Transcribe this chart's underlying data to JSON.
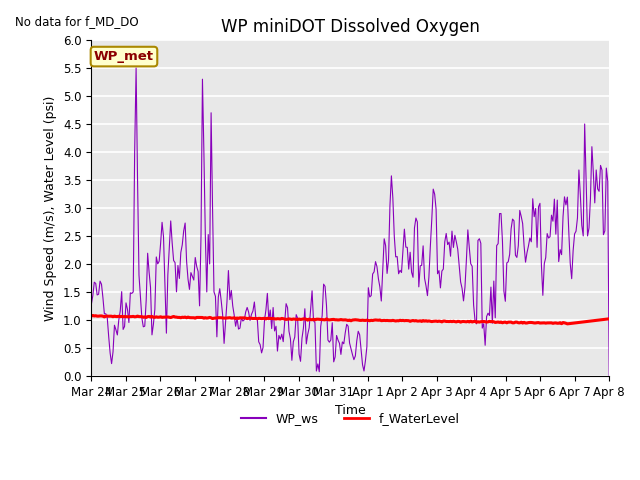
{
  "title": "WP miniDOT Dissolved Oxygen",
  "top_left_text": "No data for f_MD_DO",
  "ylabel": "Wind Speed (m/s), Water Level (psi)",
  "xlabel": "Time",
  "ylim": [
    0.0,
    6.0
  ],
  "yticks": [
    0.0,
    0.5,
    1.0,
    1.5,
    2.0,
    2.5,
    3.0,
    3.5,
    4.0,
    4.5,
    5.0,
    5.5,
    6.0
  ],
  "xtick_labels": [
    "Mar 24",
    "Mar 25",
    "Mar 26",
    "Mar 27",
    "Mar 28",
    "Mar 29",
    "Mar 30",
    "Mar 31",
    "Apr 1",
    "Apr 2",
    "Apr 3",
    "Apr 4",
    "Apr 5",
    "Apr 6",
    "Apr 7",
    "Apr 8"
  ],
  "wp_ws_color": "#8800BB",
  "f_waterlevel_color": "#FF0000",
  "legend_labels": [
    "WP_ws",
    "f_WaterLevel"
  ],
  "inset_label": "WP_met",
  "inset_bg": "#FFFFCC",
  "inset_border": "#AA8800",
  "bg_color": "#E8E8E8",
  "grid_color": "#FFFFFF",
  "title_fontsize": 12,
  "label_fontsize": 9,
  "tick_fontsize": 8.5
}
